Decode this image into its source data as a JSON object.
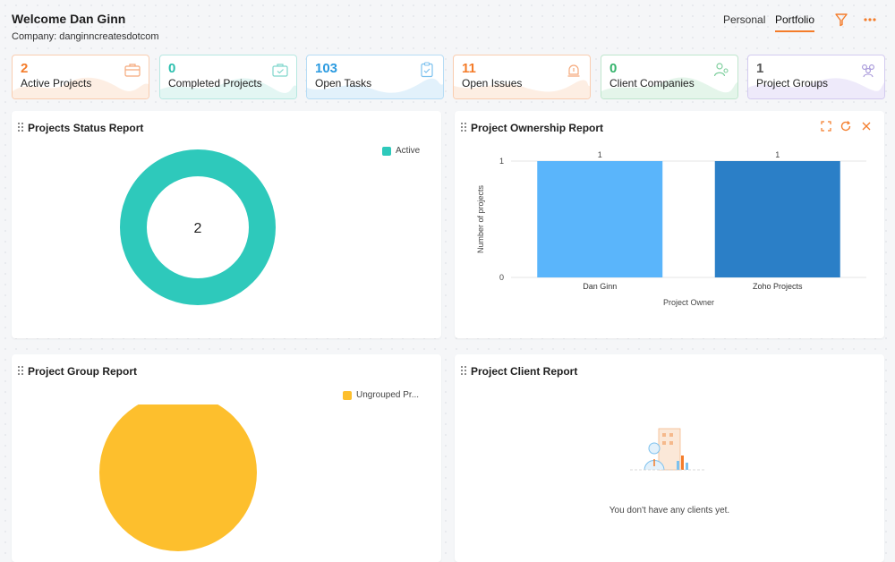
{
  "header": {
    "welcome": "Welcome Dan Ginn",
    "company_label": "Company:",
    "company_name": "danginncreatesdotcom",
    "tabs": [
      "Personal",
      "Portfolio"
    ],
    "active_tab": "Portfolio",
    "icons": [
      "filter-icon",
      "more-options-icon"
    ]
  },
  "kpis": [
    {
      "value": "2",
      "label": "Active Projects",
      "color": "#f47c2a",
      "icon": "briefcase-icon"
    },
    {
      "value": "0",
      "label": "Completed Projects",
      "color": "#2bbfae",
      "icon": "completed-briefcase-icon"
    },
    {
      "value": "103",
      "label": "Open Tasks",
      "color": "#2c9be0",
      "icon": "clipboard-task-icon"
    },
    {
      "value": "11",
      "label": "Open Issues",
      "color": "#f47c2a",
      "icon": "alarm-issue-icon"
    },
    {
      "value": "0",
      "label": "Client Companies",
      "color": "#34b36b",
      "icon": "client-people-icon"
    },
    {
      "value": "1",
      "label": "Project Groups",
      "color": "#555555",
      "icon": "group-people-icon"
    }
  ],
  "status_report": {
    "title": "Projects Status Report",
    "center_value": "2",
    "legend": [
      {
        "label": "Active",
        "color": "#2ec9bb"
      }
    ]
  },
  "ownership_report": {
    "title": "Project Ownership Report",
    "actions": [
      "expand-icon",
      "refresh-icon",
      "close-icon"
    ]
  },
  "chart_data": {
    "type": "bar",
    "categories": [
      "Dan Ginn",
      "Zoho Projects"
    ],
    "values": [
      1,
      1
    ],
    "colors": [
      "#5ab5fb",
      "#2b7fc7"
    ],
    "data_labels": [
      "1",
      "1"
    ],
    "xlabel": "Project Owner",
    "ylabel": "Number of projects",
    "ylim": [
      0,
      1
    ],
    "yticks": [
      "0",
      "1"
    ],
    "grid": true
  },
  "group_report": {
    "title": "Project Group Report",
    "legend": [
      {
        "label": "Ungrouped Pr...",
        "color": "#fdbf2d"
      }
    ]
  },
  "client_report": {
    "title": "Project Client Report",
    "empty_message": "You don't have any clients yet."
  }
}
